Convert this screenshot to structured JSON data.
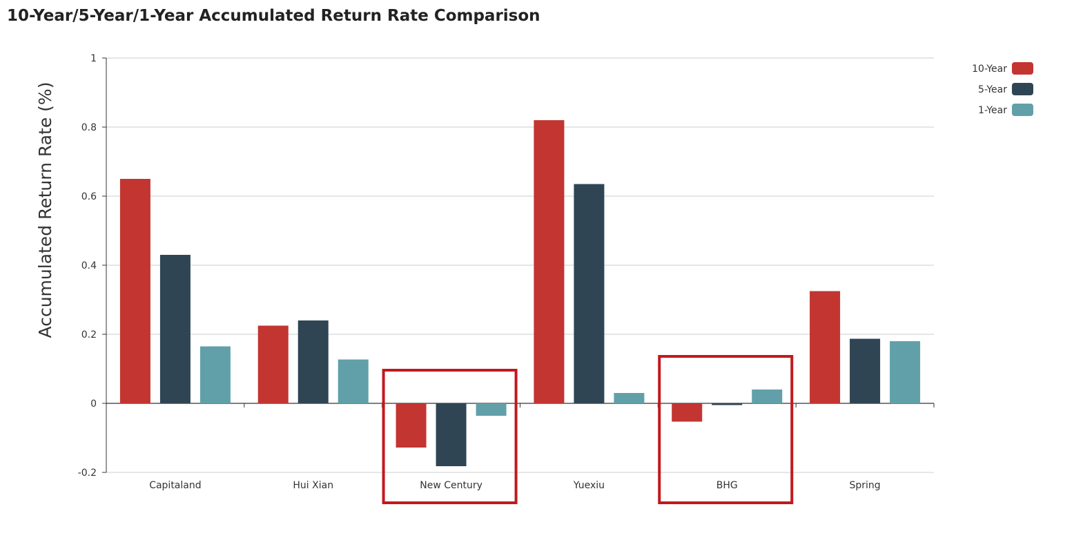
{
  "chart_data": {
    "type": "bar",
    "title": "10-Year/5-Year/1-Year Accumulated Return Rate Comparison",
    "xlabel": "",
    "ylabel": "Accumulated Return Rate (%)",
    "categories": [
      "Capitaland",
      "Hui Xian",
      "New Century",
      "Yuexiu",
      "BHG",
      "Spring"
    ],
    "series": [
      {
        "name": "10-Year",
        "color": "#c23531",
        "values": [
          0.65,
          0.225,
          -0.128,
          0.82,
          -0.053,
          0.325
        ]
      },
      {
        "name": "5-Year",
        "color": "#2f4554",
        "values": [
          0.43,
          0.24,
          -0.182,
          0.635,
          -0.005,
          0.187
        ]
      },
      {
        "name": "1-Year",
        "color": "#61a0a8",
        "values": [
          0.165,
          0.127,
          -0.036,
          0.03,
          0.04,
          0.18
        ]
      }
    ],
    "ylim": [
      -0.2,
      1
    ],
    "yticks": [
      "-0.2",
      "0",
      "0.2",
      "0.4",
      "0.6",
      "0.8",
      "1"
    ],
    "grid": true,
    "legend_position": "top-right",
    "highlighted_categories": [
      "New Century",
      "BHG"
    ],
    "highlight_color": "#c0191f"
  }
}
